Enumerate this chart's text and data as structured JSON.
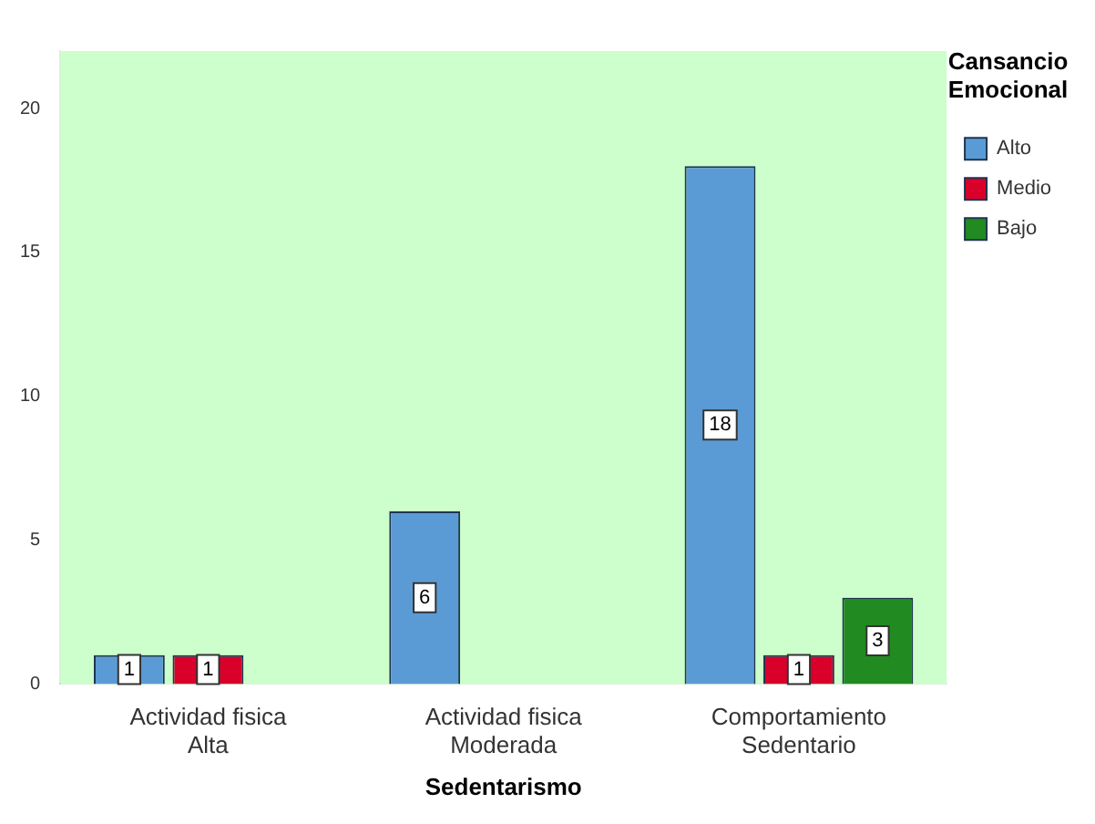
{
  "chart_data": {
    "type": "bar",
    "xlabel": "Sedentarismo",
    "legend_title": "Cansancio Emocional",
    "categories": [
      "Actividad fisica\nAlta",
      "Actividad fisica\nModerada",
      "Comportamiento\nSedentario"
    ],
    "series": [
      {
        "name": "Alto",
        "color": "#5b9bd5",
        "values": [
          1,
          6,
          18
        ]
      },
      {
        "name": "Medio",
        "color": "#d9002a",
        "values": [
          1,
          null,
          1
        ]
      },
      {
        "name": "Bajo",
        "color": "#218a21",
        "values": [
          null,
          null,
          3
        ]
      }
    ],
    "ylim": [
      0,
      22
    ],
    "yticks": [
      0,
      5,
      10,
      15,
      20
    ],
    "grid": false,
    "legend": "top right",
    "data_labels": true
  }
}
